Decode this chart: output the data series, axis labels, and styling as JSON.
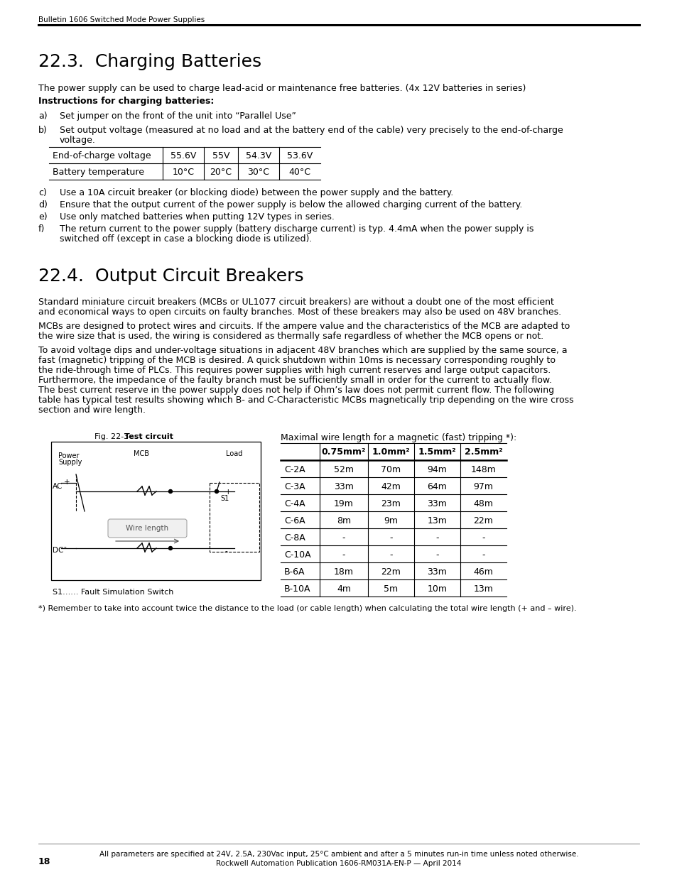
{
  "page_header": "Bulletin 1606 Switched Mode Power Supplies",
  "section1_title": "22.3.  Charging Batteries",
  "section1_intro": "The power supply can be used to charge lead-acid or maintenance free batteries. (4x 12V batteries in series)",
  "instructions_bold": "Instructions for charging batteries:",
  "list_item_a_label": "a)",
  "list_item_a_text": "Set jumper on the front of the unit into “Parallel Use”",
  "list_item_b_label": "b)",
  "list_item_b_text1": "Set output voltage (measured at no load and at the battery end of the cable) very precisely to the end-of-charge",
  "list_item_b_text2": "voltage.",
  "table1_rows": [
    [
      "End-of-charge voltage",
      "55.6V",
      "55V",
      "54.3V",
      "53.6V"
    ],
    [
      "Battery temperature",
      "10°C",
      "20°C",
      "30°C",
      "40°C"
    ]
  ],
  "list_item_c": [
    "c)",
    "Use a 10A circuit breaker (or blocking diode) between the power supply and the battery."
  ],
  "list_item_d": [
    "d)",
    "Ensure that the output current of the power supply is below the allowed charging current of the battery."
  ],
  "list_item_e": [
    "e)",
    "Use only matched batteries when putting 12V types in series."
  ],
  "list_item_f1": [
    "f)",
    "The return current to the power supply (battery discharge current) is typ. 4.4mA when the power supply is"
  ],
  "list_item_f2": "switched off (except in case a blocking diode is utilized).",
  "section2_title": "22.4.  Output Circuit Breakers",
  "section2_para1_l1": "Standard miniature circuit breakers (MCBs or UL1077 circuit breakers) are without a doubt one of the most efficient",
  "section2_para1_l2": "and economical ways to open circuits on faulty branches. Most of these breakers may also be used on 48V branches.",
  "section2_para2_l1": "MCBs are designed to protect wires and circuits. If the ampere value and the characteristics of the MCB are adapted to",
  "section2_para2_l2": "the wire size that is used, the wiring is considered as thermally safe regardless of whether the MCB opens or not.",
  "section2_para3_l1": "To avoid voltage dips and under-voltage situations in adjacent 48V branches which are supplied by the same source, a",
  "section2_para3_l2": "fast (magnetic) tripping of the MCB is desired. A quick shutdown within 10ms is necessary corresponding roughly to",
  "section2_para3_l3": "the ride-through time of PLCs. This requires power supplies with high current reserves and large output capacitors.",
  "section2_para3_l4": "Furthermore, the impedance of the faulty branch must be sufficiently small in order for the current to actually flow.",
  "section2_para3_l5": "The best current reserve in the power supply does not help if Ohm’s law does not permit current flow. The following",
  "section2_para3_l6": "table has typical test results showing which B- and C-Characteristic MCBs magnetically trip depending on the wire cross",
  "section2_para3_l7": "section and wire length.",
  "fig_label": "Fig. 22-3",
  "fig_title": "Test circuit",
  "s1_note": "S1…… Fault Simulation Switch",
  "table2_header_label": "Maximal wire length for a magnetic (fast) tripping *):",
  "table2_col_headers": [
    "",
    "0.75mm²",
    "1.0mm²",
    "1.5mm²",
    "2.5mm²"
  ],
  "table2_rows": [
    [
      "C-2A",
      "52m",
      "70m",
      "94m",
      "148m"
    ],
    [
      "C-3A",
      "33m",
      "42m",
      "64m",
      "97m"
    ],
    [
      "C-4A",
      "19m",
      "23m",
      "33m",
      "48m"
    ],
    [
      "C-6A",
      "8m",
      "9m",
      "13m",
      "22m"
    ],
    [
      "C-8A",
      "-",
      "-",
      "-",
      "-"
    ],
    [
      "C-10A",
      "-",
      "-",
      "-",
      "-"
    ],
    [
      "B-6A",
      "18m",
      "22m",
      "33m",
      "46m"
    ],
    [
      "B-10A",
      "4m",
      "5m",
      "10m",
      "13m"
    ]
  ],
  "footnote": "*) Remember to take into account twice the distance to the load (or cable length) when calculating the total wire length (+ and – wire).",
  "footer_line1": "All parameters are specified at 24V, 2.5A, 230Vac input, 25°C ambient and after a 5 minutes run-in time unless noted otherwise.",
  "footer_line2": "Rockwell Automation Publication 1606-RM031A-EN-P — April 2014",
  "footer_page": "18",
  "lmargin": 54,
  "rmargin": 900,
  "body_font": 9,
  "small_font": 7.5,
  "title_font": 18,
  "header_font": 7.5
}
